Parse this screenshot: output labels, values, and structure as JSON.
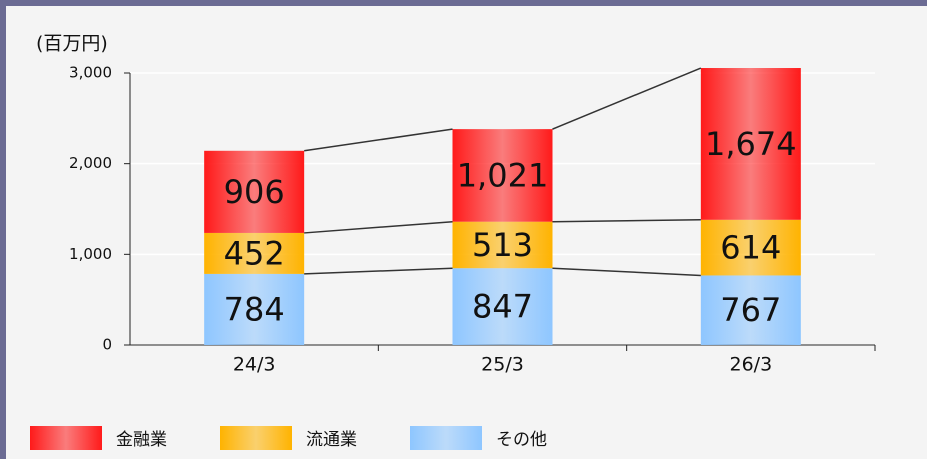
{
  "chart_data": {
    "type": "stacked-bar",
    "ylabel": "(百万円)",
    "categories": [
      "24/3",
      "25/3",
      "26/3"
    ],
    "series": [
      {
        "name": "その他",
        "color": "#8ec6ff",
        "values": [
          784,
          847,
          767
        ],
        "value_labels": [
          "784",
          "847",
          "767"
        ]
      },
      {
        "name": "流通業",
        "color": "#ffb300",
        "values": [
          452,
          513,
          614
        ],
        "value_labels": [
          "452",
          "513",
          "614"
        ]
      },
      {
        "name": "金融業",
        "color": "#ff1a1a",
        "values": [
          906,
          1021,
          1674
        ],
        "value_labels": [
          "906",
          "1,021",
          "1,674"
        ]
      }
    ],
    "ylim": [
      0,
      3000
    ],
    "yticks": [
      0,
      {
        "value": 1000,
        "label": "1,000"
      },
      {
        "value": 2000,
        "label": "2,000"
      },
      {
        "value": 3000,
        "label": "3,000"
      }
    ],
    "grid": true,
    "legend": "bottom"
  }
}
